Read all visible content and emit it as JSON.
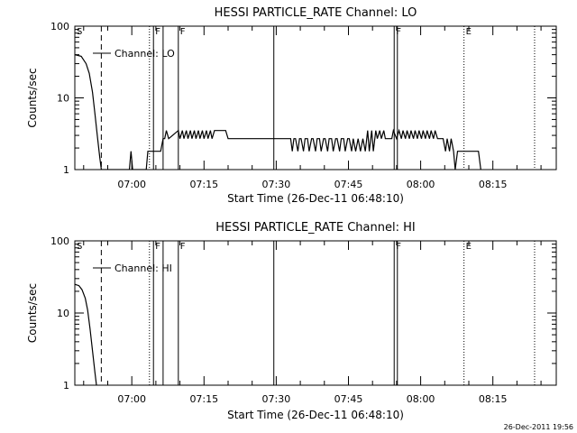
{
  "chart_data": [
    {
      "type": "line",
      "title": "HESSI PARTICLE_RATE Channel: LO",
      "xlabel": "Start Time (26-Dec-11 06:48:10)",
      "ylabel": "Counts/sec",
      "yscale": "log",
      "ylim": [
        1,
        100
      ],
      "xlim": [
        "06:48:10",
        "08:28:10"
      ],
      "y_tick_labels": [
        "1",
        "10",
        "100"
      ],
      "x_tick_labels": [
        "07:00",
        "07:15",
        "07:30",
        "07:45",
        "08:00",
        "08:15"
      ],
      "legend": {
        "label": "Channel: LO",
        "position": "top-left"
      },
      "markers": [
        {
          "label": "S",
          "time": "06:48:10",
          "style": "solid"
        },
        {
          "label": "",
          "time": "06:53:40",
          "style": "dashed"
        },
        {
          "label": "",
          "time": "07:03:40",
          "style": "dotted"
        },
        {
          "label": "F",
          "time": "07:04:30",
          "style": "solid"
        },
        {
          "label": "",
          "time": "07:06:30",
          "style": "solid"
        },
        {
          "label": "F",
          "time": "07:09:40",
          "style": "solid"
        },
        {
          "label": "",
          "time": "07:29:30",
          "style": "solid"
        },
        {
          "label": "F",
          "time": "07:54:30",
          "style": "solid"
        },
        {
          "label": "",
          "time": "07:55:10",
          "style": "solid"
        },
        {
          "label": "E",
          "time": "08:09:00",
          "style": "dotted"
        },
        {
          "label": "",
          "time": "08:23:40",
          "style": "dotted"
        }
      ],
      "series": [
        {
          "x": [
            "06:48:10",
            "06:49:30",
            "06:50:30",
            "06:51:10",
            "06:51:50",
            "06:52:20",
            "06:52:50",
            "06:53:20",
            "06:53:40",
            "06:54:10",
            "06:54:40",
            "06:56:00",
            "06:59:30",
            "06:59:50",
            "07:00:10",
            "07:03:00",
            "07:03:20",
            "07:05:40",
            "07:06:00",
            "07:06:30",
            "07:06:50",
            "07:07:10",
            "07:07:40",
            "07:09:40",
            "07:10:00",
            "07:10:30",
            "07:10:50",
            "07:11:20",
            "07:11:40",
            "07:12:10",
            "07:12:30",
            "07:13:00",
            "07:13:20",
            "07:13:50",
            "07:14:10",
            "07:14:40",
            "07:15:00",
            "07:15:30",
            "07:15:50",
            "07:16:20",
            "07:16:40",
            "07:17:10",
            "07:17:30",
            "07:19:30",
            "07:20:00",
            "07:23:30",
            "07:24:00",
            "07:26:30",
            "07:27:00",
            "07:30:00",
            "07:30:30",
            "07:33:00",
            "07:33:20",
            "07:33:40",
            "07:34:00",
            "07:34:30",
            "07:34:50",
            "07:35:10",
            "07:35:40",
            "07:36:00",
            "07:36:30",
            "07:36:50",
            "07:37:20",
            "07:37:40",
            "07:38:10",
            "07:38:30",
            "07:39:00",
            "07:39:20",
            "07:39:50",
            "07:40:10",
            "07:40:40",
            "07:41:00",
            "07:41:30",
            "07:41:50",
            "07:42:20",
            "07:42:40",
            "07:43:10",
            "07:43:30",
            "07:44:00",
            "07:44:20",
            "07:44:50",
            "07:45:10",
            "07:45:40",
            "07:46:00",
            "07:46:30",
            "07:47:00",
            "07:47:30",
            "07:48:00",
            "07:48:30",
            "07:49:00",
            "07:49:20",
            "07:49:50",
            "07:50:10",
            "07:50:40",
            "07:51:00",
            "07:51:30",
            "07:51:50",
            "07:52:20",
            "07:52:40",
            "07:53:10",
            "07:53:30",
            "07:54:00",
            "07:54:20",
            "07:55:00",
            "07:55:30",
            "07:56:00",
            "07:56:20",
            "07:56:50",
            "07:57:10",
            "07:57:40",
            "07:58:00",
            "07:58:30",
            "07:58:50",
            "07:59:20",
            "07:59:40",
            "08:00:10",
            "08:00:30",
            "08:01:00",
            "08:01:20",
            "08:01:50",
            "08:02:10",
            "08:02:40",
            "08:03:00",
            "08:03:30",
            "08:03:50",
            "08:04:20",
            "08:04:40",
            "08:05:10",
            "08:05:30",
            "08:06:00",
            "08:06:20",
            "08:06:50",
            "08:07:10",
            "08:07:40",
            "08:08:00",
            "08:08:30",
            "08:09:30",
            "08:10:00",
            "08:11:30",
            "08:12:00",
            "08:12:30"
          ],
          "y": [
            40,
            38,
            30,
            22,
            12,
            6,
            3,
            1.5,
            1,
            1,
            1,
            1,
            1,
            1.8,
            1,
            1,
            1.8,
            1.8,
            1.8,
            2.7,
            2.7,
            3.5,
            2.7,
            3.5,
            2.7,
            3.5,
            2.7,
            3.5,
            2.7,
            3.5,
            2.7,
            3.5,
            2.7,
            3.5,
            2.7,
            3.5,
            2.7,
            3.5,
            2.7,
            3.5,
            2.7,
            3.5,
            3.5,
            3.5,
            2.7,
            2.7,
            2.7,
            2.7,
            2.7,
            2.7,
            2.7,
            2.7,
            1.8,
            2.7,
            2.7,
            1.8,
            2.7,
            2.7,
            1.8,
            2.7,
            2.7,
            1.8,
            2.7,
            2.7,
            1.8,
            2.7,
            2.7,
            1.8,
            2.7,
            2.7,
            1.8,
            2.7,
            2.7,
            1.8,
            2.7,
            2.7,
            1.8,
            2.7,
            2.7,
            1.8,
            2.7,
            2.7,
            1.8,
            2.7,
            1.8,
            2.7,
            1.8,
            2.7,
            1.8,
            3.5,
            1.8,
            3.5,
            1.8,
            3.5,
            2.7,
            3.5,
            2.7,
            3.5,
            2.7,
            2.7,
            2.7,
            2.7,
            3.5,
            2.7,
            3.5,
            2.7,
            3.5,
            2.7,
            3.5,
            2.7,
            3.5,
            2.7,
            3.5,
            2.7,
            3.5,
            2.7,
            3.5,
            2.7,
            3.5,
            2.7,
            3.5,
            2.7,
            3.5,
            2.7,
            2.7,
            2.7,
            2.7,
            1.8,
            2.7,
            1.8,
            2.7,
            1.8,
            1,
            1.8,
            1.8,
            1.8,
            1.8,
            1.8,
            1.8,
            1.8,
            1
          ]
        }
      ]
    },
    {
      "type": "line",
      "title": "HESSI PARTICLE_RATE Channel: HI",
      "xlabel": "Start Time (26-Dec-11 06:48:10)",
      "ylabel": "Counts/sec",
      "yscale": "log",
      "ylim": [
        1,
        100
      ],
      "xlim": [
        "06:48:10",
        "08:28:10"
      ],
      "y_tick_labels": [
        "1",
        "10",
        "100"
      ],
      "x_tick_labels": [
        "07:00",
        "07:15",
        "07:30",
        "07:45",
        "08:00",
        "08:15"
      ],
      "legend": {
        "label": "Channel: HI",
        "position": "top-left"
      },
      "markers": [
        {
          "label": "S",
          "time": "06:48:10",
          "style": "solid"
        },
        {
          "label": "",
          "time": "06:53:40",
          "style": "dashed"
        },
        {
          "label": "",
          "time": "07:03:40",
          "style": "dotted"
        },
        {
          "label": "F",
          "time": "07:04:30",
          "style": "solid"
        },
        {
          "label": "",
          "time": "07:06:30",
          "style": "solid"
        },
        {
          "label": "F",
          "time": "07:09:40",
          "style": "solid"
        },
        {
          "label": "",
          "time": "07:29:30",
          "style": "solid"
        },
        {
          "label": "F",
          "time": "07:54:30",
          "style": "solid"
        },
        {
          "label": "",
          "time": "07:55:10",
          "style": "solid"
        },
        {
          "label": "E",
          "time": "08:09:00",
          "style": "dotted"
        },
        {
          "label": "",
          "time": "08:23:40",
          "style": "dotted"
        }
      ],
      "series": [
        {
          "x": [
            "06:48:10",
            "06:49:00",
            "06:49:40",
            "06:50:20",
            "06:50:50",
            "06:51:20",
            "06:51:50",
            "06:52:20",
            "06:52:40"
          ],
          "y": [
            25,
            24,
            21,
            16,
            11,
            6,
            3,
            1.5,
            1
          ]
        }
      ]
    }
  ],
  "footer": {
    "timestamp": "26-Dec-2011 19:56"
  }
}
